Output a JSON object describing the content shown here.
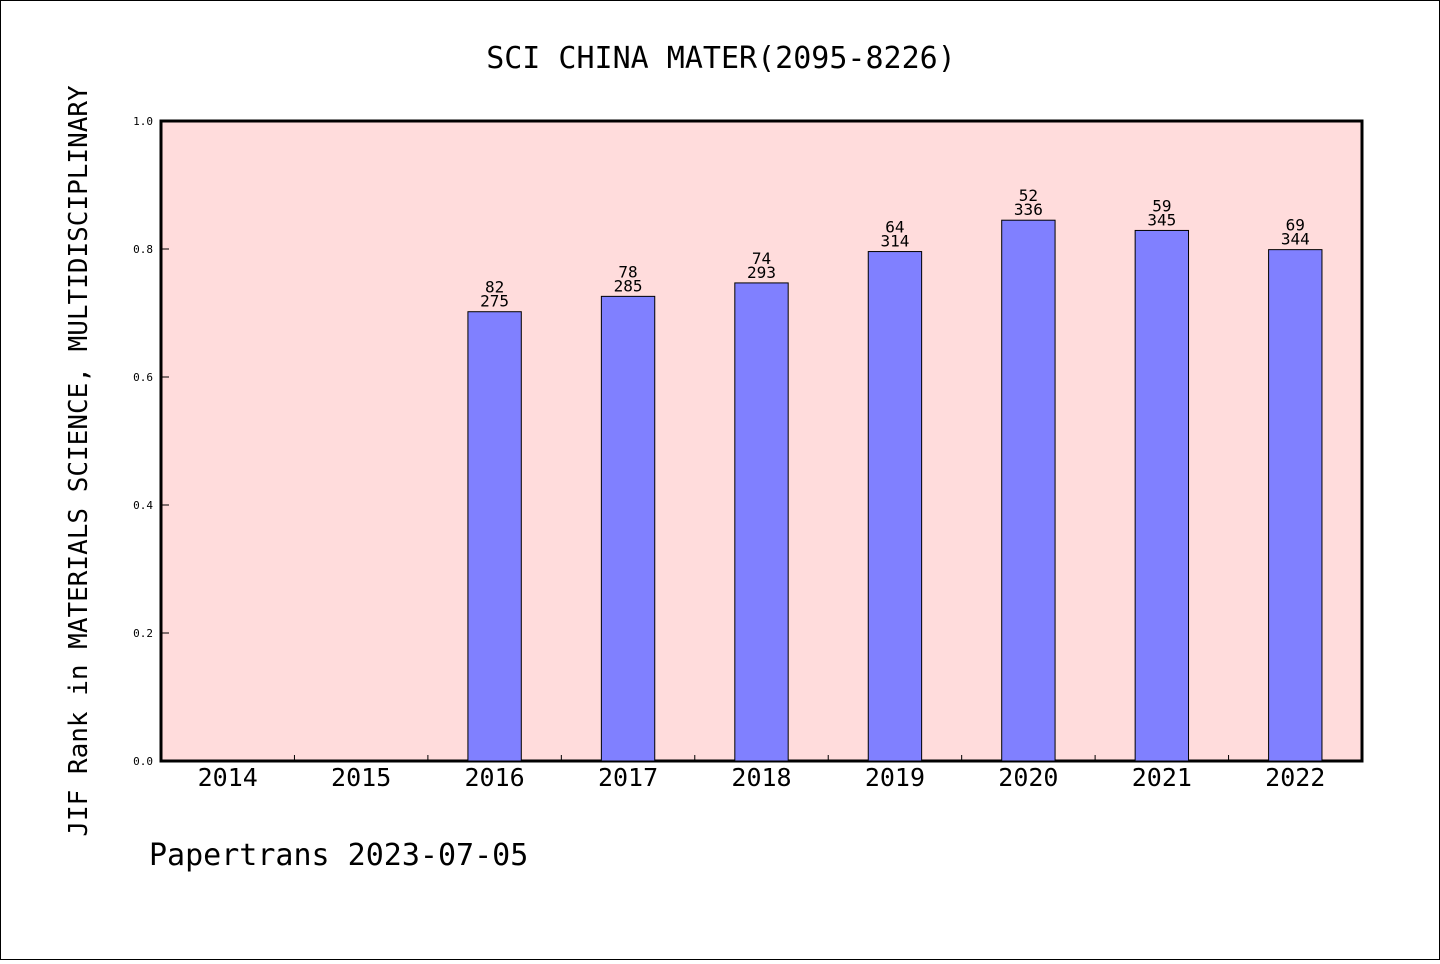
{
  "chart_data": {
    "type": "bar",
    "title": "SCI CHINA MATER(2095-8226)",
    "xlabel": "",
    "ylabel": "JIF Rank in MATERIALS SCIENCE, MULTIDISCIPLINARY",
    "ylim": [
      0,
      1.0
    ],
    "yticks": [
      "0.0",
      "0.2",
      "0.4",
      "0.6",
      "0.8",
      "1.0"
    ],
    "grid": false,
    "categories": [
      "2014",
      "2015",
      "2016",
      "2017",
      "2018",
      "2019",
      "2020",
      "2021",
      "2022"
    ],
    "values": [
      null,
      null,
      0.702,
      0.726,
      0.747,
      0.796,
      0.845,
      0.829,
      0.799
    ],
    "rank": [
      null,
      null,
      "82",
      "78",
      "74",
      "64",
      "52",
      "59",
      "69"
    ],
    "total": [
      null,
      null,
      "275",
      "285",
      "293",
      "314",
      "336",
      "345",
      "344"
    ],
    "colors": {
      "plot_background": "#ffdcdc",
      "bar": "#8080ff"
    }
  },
  "footer": "Papertrans 2023-07-05"
}
